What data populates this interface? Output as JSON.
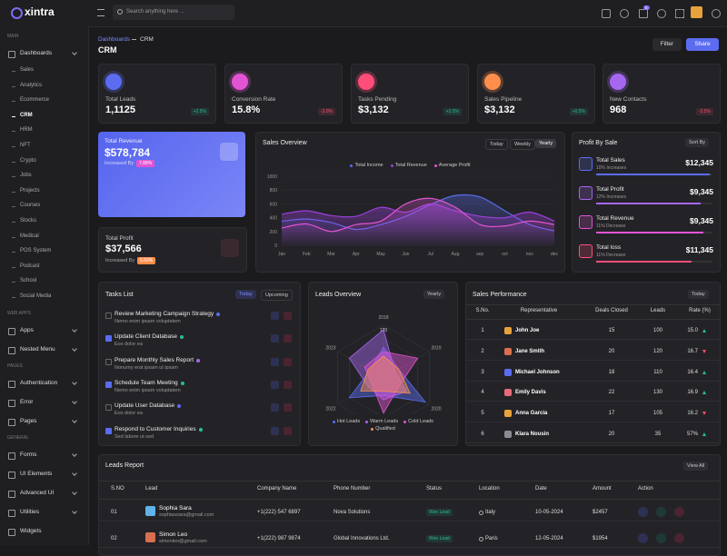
{
  "header": {
    "search_placeholder": "Search anything here ...",
    "cart_badge": "5"
  },
  "sidebar": {
    "logo": "xintra",
    "sections": [
      {
        "label": "MAIN",
        "items": [
          {
            "label": "Dashboards",
            "submenu": true,
            "active_child": 3,
            "children": [
              "Sales",
              "Analytics",
              "Ecommerce",
              "CRM",
              "HRM",
              "NFT",
              "Crypto",
              "Jobs",
              "Projects",
              "Courses",
              "Stocks",
              "Medical",
              "POS System",
              "Podcast",
              "School",
              "Social Media"
            ]
          }
        ]
      },
      {
        "label": "WEB APPS",
        "items": [
          {
            "label": "Apps",
            "submenu": true
          },
          {
            "label": "Nested Menu",
            "submenu": true
          }
        ]
      },
      {
        "label": "PAGES",
        "items": [
          {
            "label": "Authentication",
            "submenu": true
          },
          {
            "label": "Error",
            "submenu": true
          },
          {
            "label": "Pages",
            "submenu": true
          }
        ]
      },
      {
        "label": "GENERAL",
        "items": [
          {
            "label": "Forms",
            "submenu": true
          },
          {
            "label": "UI Elements",
            "submenu": true
          },
          {
            "label": "Advanced UI",
            "submenu": true
          },
          {
            "label": "Utilities",
            "submenu": true
          },
          {
            "label": "Widgets",
            "submenu": false
          }
        ]
      }
    ]
  },
  "breadcrumb": [
    "Dashboards",
    "CRM"
  ],
  "page_title": "CRM",
  "actions": [
    "Filter",
    "Share"
  ],
  "stat_cards": [
    {
      "label": "Total Leads",
      "value": "1,1125",
      "change": "+2.5%",
      "trend": "up",
      "color": "#5b6cf0"
    },
    {
      "label": "Conversion Rate",
      "value": "15.8%",
      "change": "-3.0%",
      "trend": "down",
      "color": "#e354d4"
    },
    {
      "label": "Tasks Pending",
      "value": "$3,132",
      "change": "+3.5%",
      "trend": "up",
      "color": "#ff4d7a"
    },
    {
      "label": "Sales Pipeline",
      "value": "$3,132",
      "change": "+0.5%",
      "trend": "up",
      "color": "#ff8e4c"
    },
    {
      "label": "New Contacts",
      "value": "968",
      "change": "-3.5%",
      "trend": "down",
      "color": "#a667f0"
    }
  ],
  "revenue_card": {
    "label": "Total Revenue",
    "value": "$578,784",
    "note": "Increased By",
    "badge": "7.88%"
  },
  "profit_card": {
    "label": "Total Profit",
    "value": "$37,566",
    "note": "Increased By",
    "badge": "5.69%"
  },
  "sales_overview": {
    "title": "Sales Overview",
    "tabs": [
      "Today",
      "Weekly",
      "Yearly"
    ],
    "active_tab": 2,
    "chart": {
      "type": "area",
      "categories": [
        "Jan",
        "Feb",
        "Mar",
        "Apr",
        "May",
        "Jun",
        "Jul",
        "Aug",
        "sep",
        "oct",
        "nov",
        "dec"
      ],
      "series": [
        {
          "name": "Total Income",
          "color": "#5b6cf0",
          "values": [
            350,
            380,
            330,
            230,
            300,
            420,
            590,
            720,
            700,
            500,
            300,
            210
          ]
        },
        {
          "name": "Total Revenue",
          "color": "#9b3fd8",
          "values": [
            450,
            500,
            430,
            420,
            550,
            480,
            600,
            500,
            420,
            400,
            480,
            350
          ]
        },
        {
          "name": "Average Profit",
          "color": "#e354d4",
          "values": [
            250,
            310,
            200,
            300,
            350,
            600,
            680,
            550,
            300,
            280,
            350,
            300
          ]
        }
      ],
      "ylim": [
        0,
        1000
      ],
      "yticks": [
        0,
        200,
        400,
        600,
        800,
        1000
      ],
      "grid": true
    }
  },
  "profit_by_sale": {
    "title": "Profit By Sale",
    "sort": "Sort By",
    "items": [
      {
        "label": "Total Sales",
        "note": "10% Increases",
        "value": "$12,345",
        "color": "#5b6cf0"
      },
      {
        "label": "Total Profit",
        "note": "12% Increases",
        "value": "$9,345",
        "color": "#a667f0"
      },
      {
        "label": "Total Revenue",
        "note": "11% Decrease",
        "value": "$9,345",
        "color": "#e354d4"
      },
      {
        "label": "Total loss",
        "note": "11% Decrease",
        "value": "$11,345",
        "color": "#ff4d7a"
      }
    ]
  },
  "tasks": {
    "title": "Tasks List",
    "tabs": [
      "Today",
      "Upcoming"
    ],
    "items": [
      {
        "title": "Review Marketing Campaign Strategy",
        "subtitle": "Nemo enim ipsam voluptatem",
        "done": false,
        "badge_color": "#5b6cf0"
      },
      {
        "title": "Update Client Database",
        "subtitle": "Eos dolor ea",
        "done": true,
        "badge_color": "#26bf94"
      },
      {
        "title": "Prepare Monthly Sales Report",
        "subtitle": "Nonumy erat ipsam ut ipsam",
        "done": false,
        "badge_color": "#a667f0"
      },
      {
        "title": "Schedule Team Meeting",
        "subtitle": "Nemo enim ipsam voluptatem",
        "done": true,
        "badge_color": "#26bf94"
      },
      {
        "title": "Update User Database",
        "subtitle": "Eos dolor ea",
        "done": false,
        "badge_color": "#5b6cf0"
      },
      {
        "title": "Respond to Customer Inquiries",
        "subtitle": "Sed labore ut sed",
        "done": true,
        "badge_color": "#26bf94"
      }
    ]
  },
  "leads_overview": {
    "title": "Leads Overview",
    "filter": "Yearly",
    "chart": {
      "type": "radar",
      "axes": [
        "2018",
        "2019",
        "2020",
        "2021",
        "2022",
        "2023"
      ],
      "rlim": [
        0,
        120
      ],
      "rticks": [
        120
      ],
      "series": [
        {
          "name": "Hot Leads",
          "color": "#5b6cf0",
          "values": [
            70,
            40,
            110,
            40,
            90,
            35
          ]
        },
        {
          "name": "Warm Leads",
          "color": "#a667f0",
          "values": [
            110,
            30,
            60,
            50,
            40,
            90
          ]
        },
        {
          "name": "Cold Leads",
          "color": "#e354d4",
          "values": [
            60,
            90,
            40,
            80,
            30,
            50
          ]
        },
        {
          "name": "Qualified",
          "color": "#ff8e4c",
          "values": [
            50,
            40,
            70,
            30,
            60,
            40
          ]
        }
      ]
    }
  },
  "sales_performance": {
    "title": "Sales Performance",
    "filter": "Today",
    "columns": [
      "S.No.",
      "Representative",
      "Deals Closed",
      "Leads",
      "Rate (%)"
    ],
    "rows": [
      [
        "1",
        "John Joe",
        "15",
        "100",
        "15.0"
      ],
      [
        "2",
        "Jane Smith",
        "20",
        "120",
        "16.7"
      ],
      [
        "3",
        "Michael Johnson",
        "18",
        "110",
        "16.4"
      ],
      [
        "4",
        "Emily Davis",
        "22",
        "130",
        "16.9"
      ],
      [
        "5",
        "Anna Garcia",
        "17",
        "105",
        "16.2"
      ],
      [
        "6",
        "Klara Nousin",
        "20",
        "35",
        "57%"
      ]
    ],
    "trends": [
      "up",
      "down",
      "up",
      "up",
      "down",
      "up"
    ]
  },
  "leads_report": {
    "title": "Leads Report",
    "action": "View All",
    "columns": [
      "S.NO",
      "Lead",
      "Company Name",
      "Phone Number",
      "Status",
      "Location",
      "Date",
      "Amount",
      "Action"
    ],
    "rows": [
      {
        "no": "01",
        "name": "Sophia Sara",
        "email": "sophiassara@gmail.com",
        "company": "+1(222) 547 6897",
        "phone": "Nova Solutions",
        "status": "Won Lead",
        "location": "Italy",
        "date": "10-05-2024",
        "amount": "$2457"
      },
      {
        "no": "02",
        "name": "Simon Leo",
        "email": "simonleo@gmail.com",
        "company": "+1(222) 987 9874",
        "phone": "Global Innovations Ltd.",
        "status": "Won Lead",
        "location": "Paris",
        "date": "12-05-2024",
        "amount": "$1954"
      }
    ]
  }
}
